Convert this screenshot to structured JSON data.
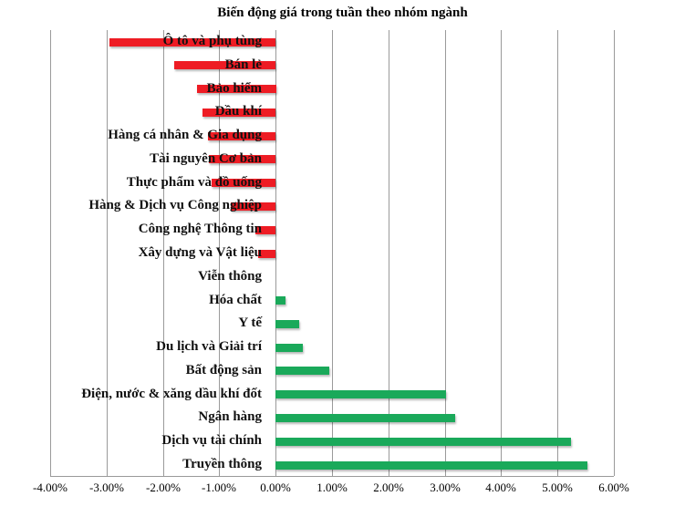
{
  "chart_data": {
    "type": "bar",
    "orientation": "horizontal",
    "title": "Biến động giá trong tuần theo nhóm ngành",
    "xlabel": "",
    "ylabel": "",
    "xlim": [
      -0.04,
      0.06
    ],
    "x_ticks": [
      "-4.00%",
      "-3.00%",
      "-2.00%",
      "-1.00%",
      "0.00%",
      "1.00%",
      "2.00%",
      "3.00%",
      "4.00%",
      "5.00%",
      "6.00%"
    ],
    "grid": true,
    "legend": null,
    "colors": {
      "negative": "#ee1c24",
      "positive": "#1aa95a"
    },
    "categories": [
      "Ô tô và phụ tùng",
      "Bán lẻ",
      "Bảo hiểm",
      "Dầu khí",
      "Hàng cá nhân & Gia dụng",
      "Tài nguyên Cơ bản",
      "Thực phẩm và đồ uống",
      "Hàng & Dịch vụ Công nghiệp",
      "Công nghệ Thông tin",
      "Xây dựng và Vật liệu",
      "Viễn thông",
      "Hóa chất",
      "Y tế",
      "Du lịch và Giải trí",
      "Bất động sản",
      "Điện, nước & xăng dầu khí đốt",
      "Ngân hàng",
      "Dịch vụ tài chính",
      "Truyền thông"
    ],
    "values": [
      -2.95,
      -1.8,
      -1.4,
      -1.3,
      -1.2,
      -1.18,
      -1.13,
      -0.8,
      -0.36,
      -0.31,
      0.0,
      0.17,
      0.42,
      0.48,
      0.95,
      3.02,
      3.18,
      5.24,
      5.53
    ],
    "value_unit": "%"
  }
}
